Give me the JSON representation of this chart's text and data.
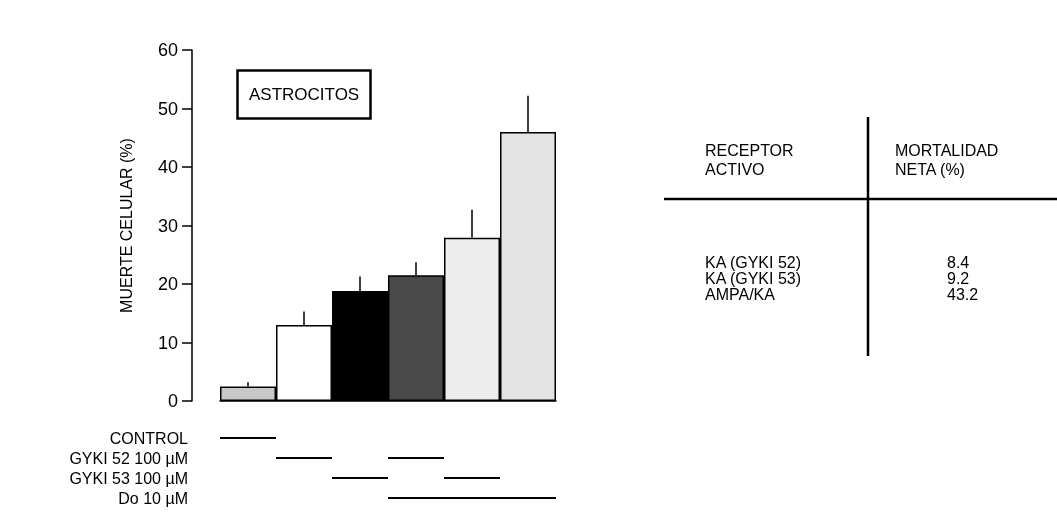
{
  "chart_data": {
    "type": "bar",
    "title": "ASTROCITOS",
    "ylabel": "MUERTE CELULAR (%)",
    "categories": [
      null,
      null,
      null,
      null,
      null,
      null
    ],
    "values": [
      2.5,
      13.0,
      18.8,
      21.5,
      27.9,
      46.0
    ],
    "colors": [
      "#c8c8c8",
      "#ffffff",
      "#000000",
      "#4a4a4a",
      "#ededed",
      "#e3e3e3"
    ],
    "errors": [
      [
        2.5,
        3.2
      ],
      [
        13.0,
        15.3
      ],
      [
        18.8,
        21.3
      ],
      [
        21.5,
        23.7
      ],
      [
        27.9,
        32.7
      ],
      [
        46.0,
        52.2
      ]
    ],
    "ylim": [
      0,
      60
    ],
    "yticks": [
      0,
      10,
      20,
      30,
      40,
      50,
      60
    ],
    "grid": false,
    "annotations": [
      "RECEPTOR\nACTIVO",
      "MORTALIDAD\nNETA (%)",
      "KA (GYKI 52)",
      "8.4",
      "KA (GYKI 53)",
      "9.2",
      "AMPA/KA",
      "43.2",
      "CONTROL",
      "GYKI 52 100 µM",
      "GYKI 53 100 µM",
      "Do 10 µM"
    ]
  }
}
